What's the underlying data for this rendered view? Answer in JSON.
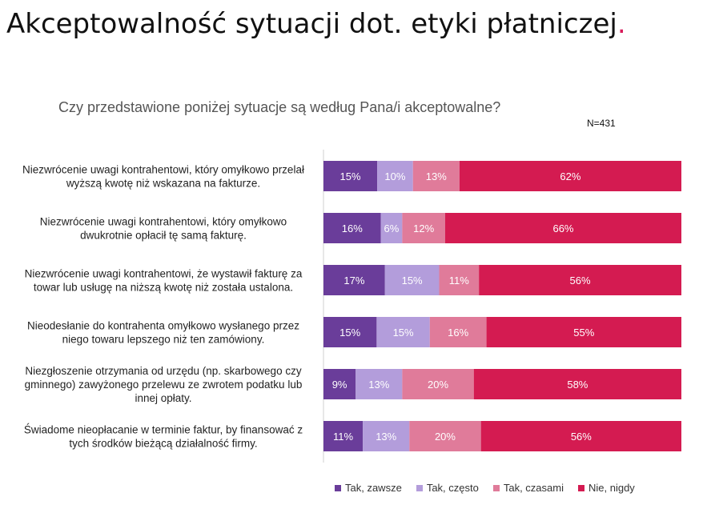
{
  "page": {
    "title": "Akceptowalność sytuacji dot. etyki płatniczej",
    "title_dot": ".",
    "accent_color": "#d81b5a"
  },
  "chart_data": {
    "type": "bar",
    "orientation": "horizontal",
    "stacked": true,
    "title": "Czy przedstawione poniżej sytuacje są według Pana/i akceptowalne?",
    "annotation": "N=431",
    "unit": "%",
    "categories": [
      "Niezwrócenie uwagi kontrahentowi, który omyłkowo przelał wyższą kwotę niż wskazana na fakturze.",
      "Niezwrócenie uwagi kontrahentowi, który omyłkowo dwukrotnie opłacił tę samą fakturę.",
      "Niezwrócenie uwagi kontrahentowi, że wystawił fakturę za towar lub usługę na niższą kwotę niż została ustalona.",
      "Nieodesłanie do kontrahenta omyłkowo wysłanego przez niego towaru lepszego niż ten zamówiony.",
      "Niezgłoszenie otrzymania od urzędu (np. skarbowego czy gminnego) zawyżonego przelewu ze zwrotem podatku lub innej opłaty.",
      "Świadome nieopłacanie w terminie faktur, by finansować z tych środków bieżącą działalność firmy."
    ],
    "category_lines": [
      [
        "Niezwrócenie uwagi kontrahentowi, który omyłkowo przelał",
        "wyższą kwotę niż wskazana na fakturze."
      ],
      [
        "Niezwrócenie uwagi kontrahentowi, który omyłkowo",
        "dwukrotnie opłacił tę samą fakturę."
      ],
      [
        "Niezwrócenie uwagi kontrahentowi, że wystawił fakturę za",
        "towar lub usługę na niższą kwotę niż została ustalona."
      ],
      [
        "Nieodesłanie do kontrahenta omyłkowo wysłanego przez",
        "niego towaru lepszego niż ten zamówiony."
      ],
      [
        "Niezgłoszenie otrzymania od urzędu (np. skarbowego czy",
        "gminnego) zawyżonego przelewu ze zwrotem podatku lub",
        "innej opłaty."
      ],
      [
        "Świadome nieopłacanie w terminie faktur, by finansować z",
        "tych środków bieżącą działalność firmy."
      ]
    ],
    "series": [
      {
        "name": "Tak, zawsze",
        "color": "#6a3d9a",
        "values": [
          15,
          16,
          17,
          15,
          9,
          11
        ]
      },
      {
        "name": "Tak, często",
        "color": "#b39ddb",
        "values": [
          10,
          6,
          15,
          15,
          13,
          13
        ]
      },
      {
        "name": "Tak, czasami",
        "color": "#e07b9a",
        "values": [
          13,
          12,
          11,
          16,
          20,
          20
        ]
      },
      {
        "name": "Nie, nigdy",
        "color": "#d41b51",
        "values": [
          62,
          66,
          56,
          55,
          58,
          56
        ]
      }
    ],
    "legend_position": "bottom",
    "grid": false
  }
}
